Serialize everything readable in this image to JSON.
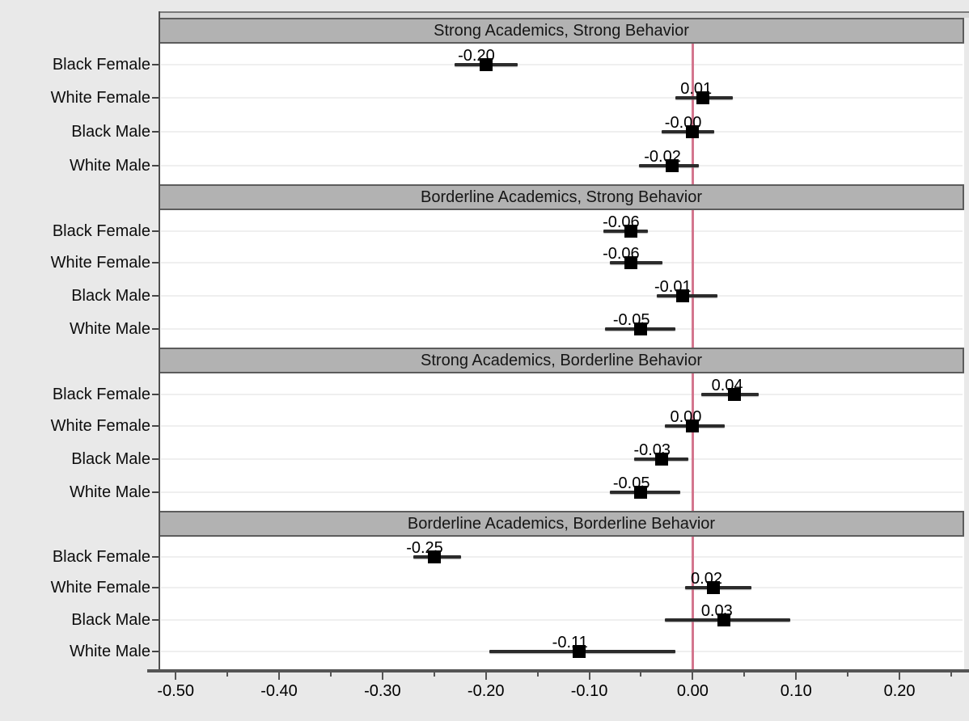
{
  "chart_data": {
    "type": "scatter",
    "subtype": "coefficient-forest-plot",
    "orientation": "horizontal",
    "grid": "faint-horizontal-row-gridlines",
    "panels": [
      {
        "title": "Strong Academics, Strong Behavior",
        "rows": [
          {
            "label": "Black Female",
            "value": -0.2,
            "value_label": "-0.20",
            "ci": [
              -0.23,
              -0.169
            ]
          },
          {
            "label": "White Female",
            "value": 0.01,
            "value_label": "0.01",
            "ci": [
              -0.017,
              0.039
            ]
          },
          {
            "label": "Black Male",
            "value": -0.0,
            "value_label": "-0.00",
            "ci": [
              -0.03,
              0.021
            ]
          },
          {
            "label": "White Male",
            "value": -0.02,
            "value_label": "-0.02",
            "ci": [
              -0.052,
              0.006
            ]
          }
        ]
      },
      {
        "title": "Borderline Academics, Strong Behavior",
        "rows": [
          {
            "label": "Black Female",
            "value": -0.06,
            "value_label": "-0.06",
            "ci": [
              -0.086,
              -0.043
            ]
          },
          {
            "label": "White Female",
            "value": -0.06,
            "value_label": "-0.06",
            "ci": [
              -0.08,
              -0.029
            ]
          },
          {
            "label": "Black Male",
            "value": -0.01,
            "value_label": "-0.01",
            "ci": [
              -0.035,
              0.024
            ]
          },
          {
            "label": "White Male",
            "value": -0.05,
            "value_label": "-0.05",
            "ci": [
              -0.085,
              -0.017
            ]
          }
        ]
      },
      {
        "title": "Strong Academics, Borderline Behavior",
        "rows": [
          {
            "label": "Black Female",
            "value": 0.04,
            "value_label": "0.04",
            "ci": [
              0.008,
              0.064
            ]
          },
          {
            "label": "White Female",
            "value": 0.0,
            "value_label": "0.00",
            "ci": [
              -0.027,
              0.031
            ]
          },
          {
            "label": "Black Male",
            "value": -0.03,
            "value_label": "-0.03",
            "ci": [
              -0.057,
              -0.004
            ]
          },
          {
            "label": "White Male",
            "value": -0.05,
            "value_label": "-0.05",
            "ci": [
              -0.08,
              -0.012
            ]
          }
        ]
      },
      {
        "title": "Borderline Academics, Borderline Behavior",
        "rows": [
          {
            "label": "Black Female",
            "value": -0.25,
            "value_label": "-0.25",
            "ci": [
              -0.27,
              -0.224
            ]
          },
          {
            "label": "White Female",
            "value": 0.02,
            "value_label": "0.02",
            "ci": [
              -0.007,
              0.057
            ]
          },
          {
            "label": "Black Male",
            "value": 0.03,
            "value_label": "0.03",
            "ci": [
              -0.027,
              0.094
            ]
          },
          {
            "label": "White Male",
            "value": -0.11,
            "value_label": "-0.11",
            "ci": [
              -0.197,
              -0.017
            ]
          }
        ]
      }
    ],
    "x_axis": {
      "range": [
        -0.515,
        0.2625
      ],
      "major_ticks": [
        -0.5,
        -0.4,
        -0.3,
        -0.2,
        -0.1,
        0.0,
        0.1,
        0.2
      ],
      "major_tick_labels": [
        "-0.50",
        "-0.40",
        "-0.30",
        "-0.20",
        "-0.10",
        "0.00",
        "0.10",
        "0.20"
      ],
      "minor_ticks": [
        -0.45,
        -0.35,
        -0.25,
        -0.15,
        -0.05,
        0.05,
        0.15,
        0.25
      ]
    },
    "reference_line": {
      "x": 0.0,
      "color": "#d4768e"
    },
    "legend": null,
    "colors": {
      "page_bg": "#e9e9e9",
      "panel_bg": "#ffffff",
      "header_fill": "#b2b2b2",
      "header_border": "#5c5c5c",
      "marker": "#000000",
      "ci_line": "#2b2b2b",
      "gridline": "#efefef",
      "axis_line": "#555555",
      "reference_line": "#d4768e",
      "text": "#000000"
    }
  }
}
